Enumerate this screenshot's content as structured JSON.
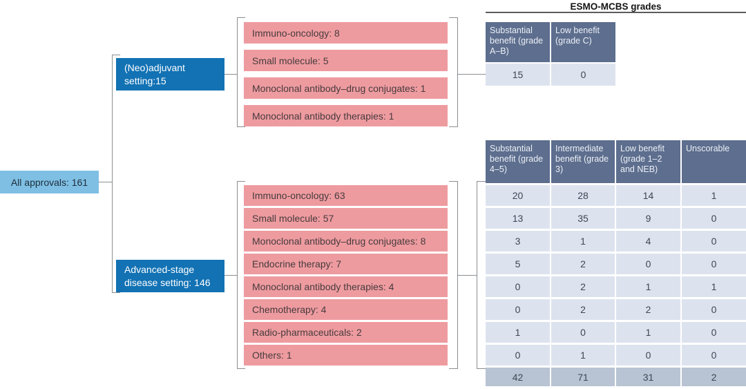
{
  "title": "ESMO-MCBS grades",
  "root": {
    "label": "All approvals: 161"
  },
  "branches": [
    {
      "setting_label": "(Neo)adjuvant setting:15",
      "categories": [
        "Immuno-oncology: 8",
        "Small molecule: 5",
        "Monoclonal antibody–drug conjugates: 1",
        "Monoclonal antibody therapies: 1"
      ],
      "table": {
        "headers": [
          "Substantial benefit (grade A–B)",
          "Low benefit (grade C)"
        ],
        "rows": [
          [
            "15",
            "0"
          ]
        ]
      }
    },
    {
      "setting_label": "Advanced-stage disease setting: 146",
      "categories": [
        "Immuno-oncology: 63",
        "Small molecule: 57",
        "Monoclonal antibody–drug conjugates: 8",
        "Endocrine therapy: 7",
        "Monoclonal antibody therapies: 4",
        "Chemotherapy: 4",
        "Radio-pharmaceuticals: 2",
        "Others: 1"
      ],
      "table": {
        "headers": [
          "Substantial benefit (grade 4–5)",
          "Intermediate benefit (grade 3)",
          "Low benefit (grade 1–2 and NEB)",
          "Unscorable"
        ],
        "rows": [
          [
            "20",
            "28",
            "14",
            "1"
          ],
          [
            "13",
            "35",
            "9",
            "0"
          ],
          [
            "3",
            "1",
            "4",
            "0"
          ],
          [
            "5",
            "2",
            "0",
            "0"
          ],
          [
            "0",
            "2",
            "1",
            "1"
          ],
          [
            "0",
            "2",
            "2",
            "0"
          ],
          [
            "1",
            "0",
            "1",
            "0"
          ],
          [
            "0",
            "1",
            "0",
            "0"
          ]
        ],
        "totals": [
          "42",
          "71",
          "31",
          "2"
        ]
      }
    }
  ],
  "colors": {
    "root_box": "#7fbfe4",
    "setting_box": "#1272b4",
    "category_box": "#ee9ba0",
    "table_header": "#5d6e8e",
    "table_cell": "#dde3ee",
    "table_total_row": "#b8c3d3",
    "connector": "#8a8d91"
  }
}
